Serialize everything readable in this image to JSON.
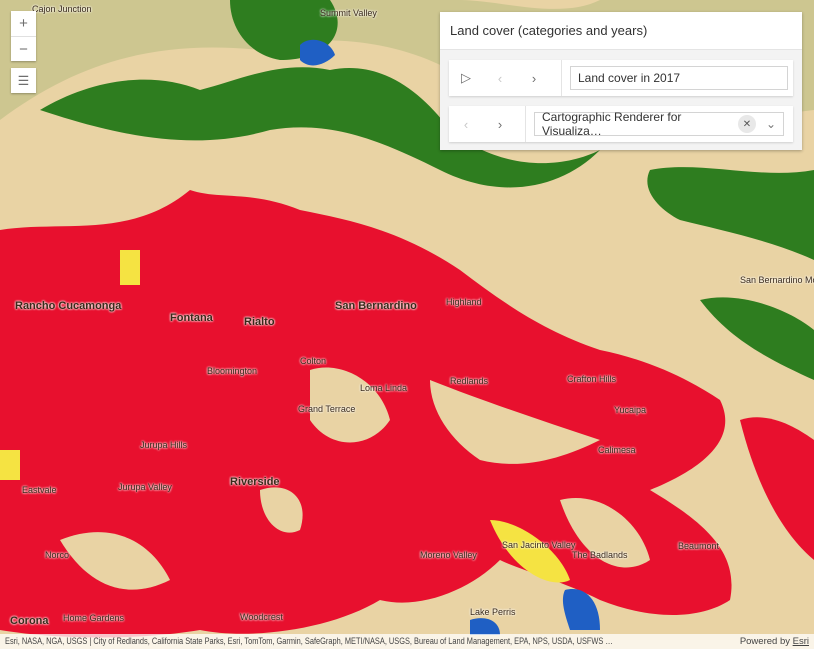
{
  "colors": {
    "developed": "#e8102e",
    "forest": "#2e7d1f",
    "barren": "#e9d3a4",
    "crops": "#f5e342",
    "water": "#1f5fc4"
  },
  "places": [
    {
      "name": "Summit Valley"
    },
    {
      "name": "Cajon Junction"
    },
    {
      "name": "Rancho Cucamonga"
    },
    {
      "name": "Fontana"
    },
    {
      "name": "Rialto"
    },
    {
      "name": "San Bernardino"
    },
    {
      "name": "Highland"
    },
    {
      "name": "Colton"
    },
    {
      "name": "Bloomington"
    },
    {
      "name": "Loma Linda"
    },
    {
      "name": "Redlands"
    },
    {
      "name": "Crafton Hills"
    },
    {
      "name": "Yucaipa"
    },
    {
      "name": "Grand Terrace"
    },
    {
      "name": "Riverside"
    },
    {
      "name": "Jurupa Hills"
    },
    {
      "name": "Jurupa Valley"
    },
    {
      "name": "Eastvale"
    },
    {
      "name": "Norco"
    },
    {
      "name": "Corona"
    },
    {
      "name": "Home Gardens"
    },
    {
      "name": "Woodcrest"
    },
    {
      "name": "Moreno Valley"
    },
    {
      "name": "The Badlands"
    },
    {
      "name": "Beaumont"
    },
    {
      "name": "San Jacinto Valley"
    },
    {
      "name": "Lake Perris"
    },
    {
      "name": "Calimesa"
    },
    {
      "name": "San Bernardino Mountains"
    }
  ],
  "zoom": {
    "in": "+",
    "out": "−"
  },
  "legend_icon": "list-icon",
  "panel": {
    "title": "Land cover (categories and years)",
    "time": {
      "play": "▷",
      "prev": "‹",
      "next": "›",
      "value": "Land cover in 2017"
    },
    "renderer": {
      "prev": "‹",
      "next": "›",
      "value": "Cartographic Renderer for Visualiza…",
      "clear": "✕",
      "dropdown": "⌄"
    }
  },
  "attribution": {
    "text": "Esri, NASA, NGA, USGS | City of Redlands, California State Parks, Esri, TomTom, Garmin, SafeGraph, METI/NASA, USGS, Bureau of Land Management, EPA, NPS, USDA, USFWS …",
    "powered": "Powered by ",
    "esri": "Esri"
  }
}
